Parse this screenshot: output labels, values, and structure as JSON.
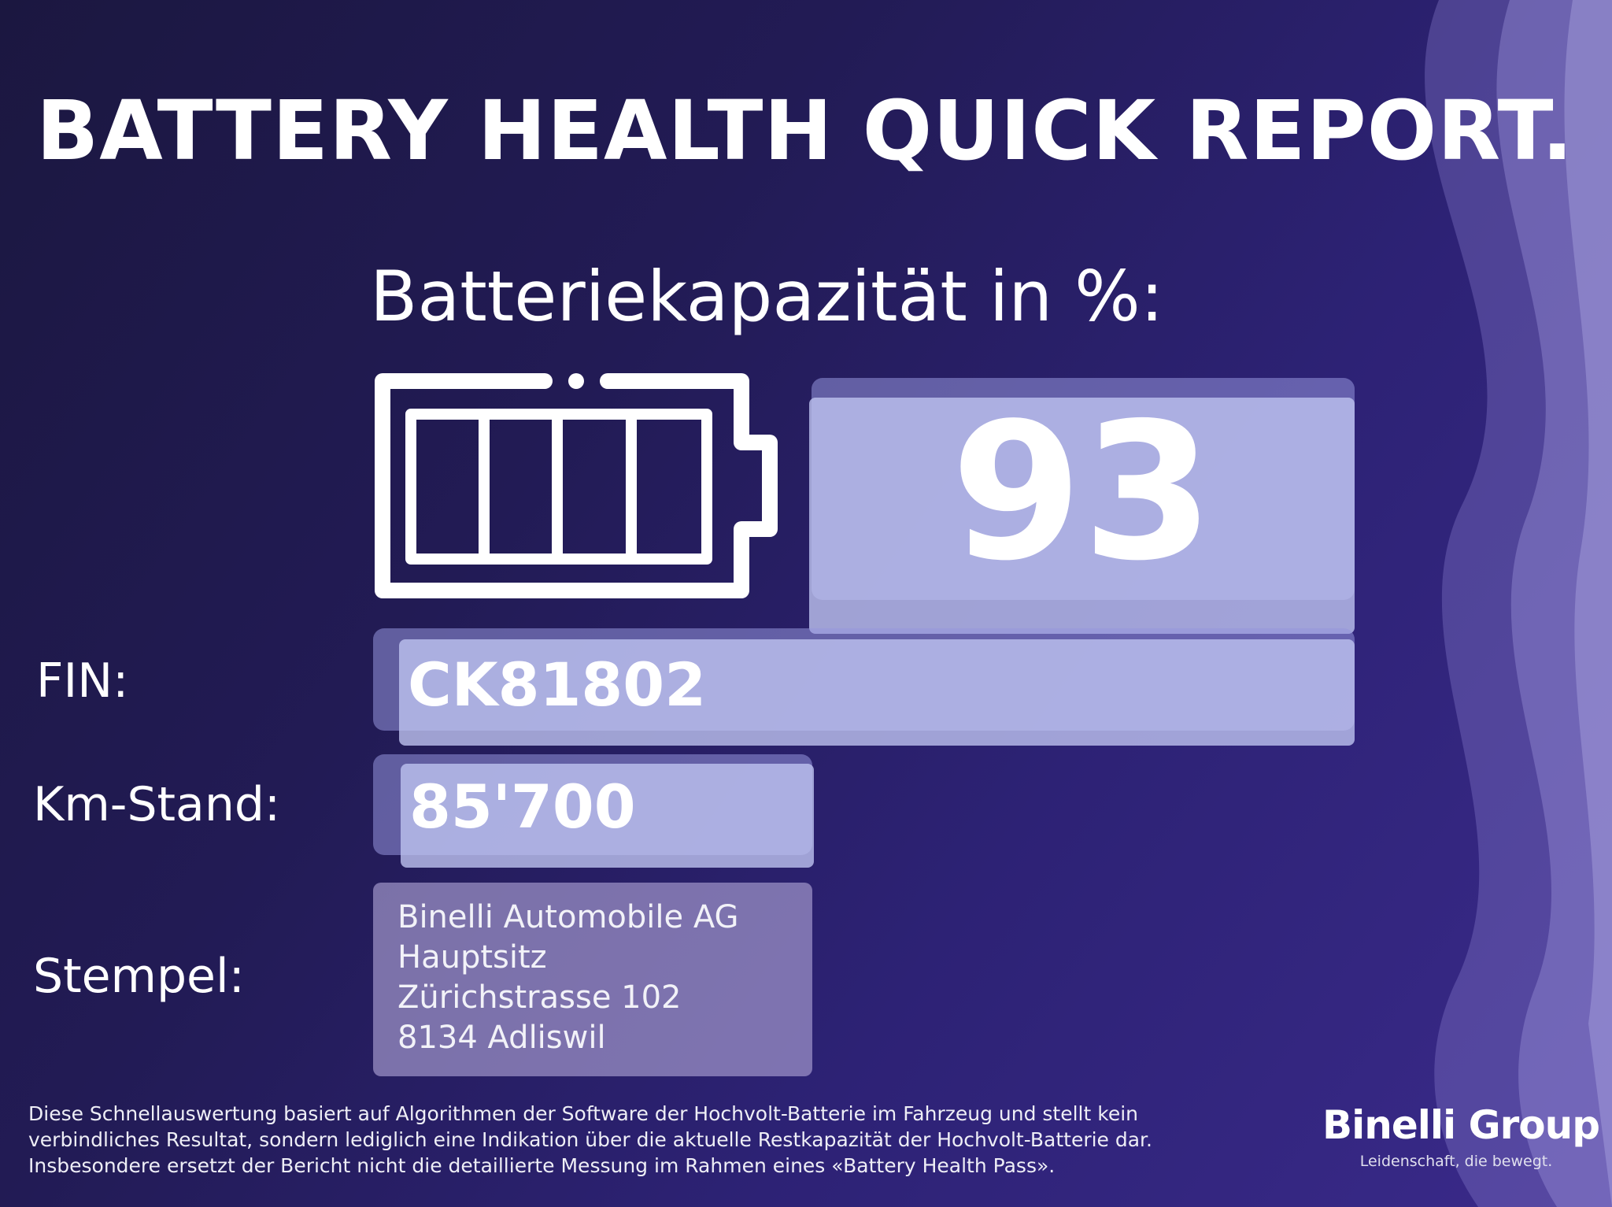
{
  "report": {
    "title": "BATTERY HEALTH QUICK REPORT.",
    "capacity_label": "Batteriekapazität in %:",
    "capacity_value": "93",
    "capacity_percent": 93
  },
  "fields": {
    "fin": {
      "label": "FIN:",
      "value": "CK81802"
    },
    "mileage": {
      "label": "Km-Stand:",
      "value": "85'700"
    },
    "stamp": {
      "label": "Stempel:",
      "lines": [
        "Binelli Automobile AG",
        "Hauptsitz",
        "Zürichstrasse 102",
        "8134 Adliswil"
      ]
    }
  },
  "disclaimer": {
    "lines": [
      "Diese Schnellauswertung basiert auf Algorithmen der Software der Hochvolt-Batterie im Fahrzeug und stellt kein",
      "verbindliches Resultat, sondern lediglich eine Indikation über die aktuelle Restkapazität der Hochvolt-Batterie dar.",
      "Insbesondere ersetzt der Bericht nicht die detaillierte Messung im Rahmen eines «Battery Health Pass»."
    ]
  },
  "brand": {
    "name": "Binelli Group",
    "tagline": "Leidenschaft, die bewegt."
  },
  "colors": {
    "background_dark": "#1b1740",
    "background_light": "#3a2a8a",
    "value_box": "#bec3f0",
    "text": "#ffffff"
  },
  "icons": [
    "battery-full-icon",
    "decorative-waves"
  ]
}
